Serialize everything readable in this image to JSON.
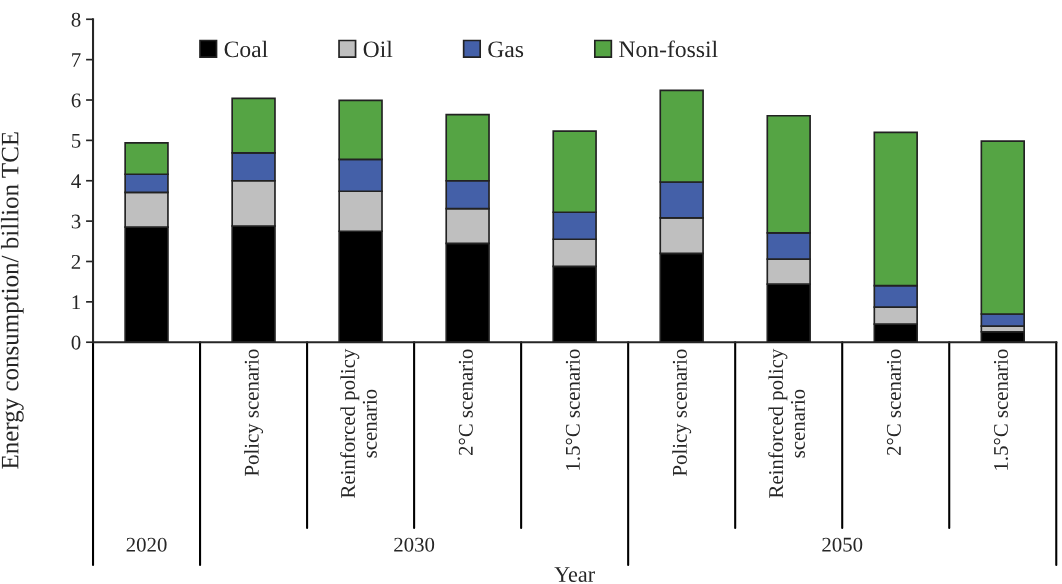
{
  "chart_data": {
    "type": "bar",
    "stacked": true,
    "ylabel": "Energy consumption/ billion TCE",
    "xlabel": "Year",
    "categories": [
      null,
      "Policy scenario",
      "Reinforced policy\nscenario",
      "2°C scenario",
      "1.5°C scenario",
      "Policy scenario",
      "Reinforced policy\nscenario",
      "2°C scenario",
      "1.5°C scenario"
    ],
    "annotations": [
      "2020",
      "2030",
      "2050"
    ],
    "series": [
      {
        "name": "Coal",
        "color": "#000000",
        "values": [
          2.85,
          2.88,
          2.75,
          2.45,
          1.88,
          2.2,
          1.44,
          0.45,
          0.26
        ]
      },
      {
        "name": "Oil",
        "color": "#bfbfbf",
        "values": [
          0.86,
          1.12,
          0.99,
          0.86,
          0.67,
          0.88,
          0.62,
          0.42,
          0.14
        ]
      },
      {
        "name": "Gas",
        "color": "#4460a8",
        "values": [
          0.45,
          0.69,
          0.79,
          0.69,
          0.67,
          0.89,
          0.65,
          0.53,
          0.3
        ]
      },
      {
        "name": "Non-fossil",
        "color": "#55a444",
        "values": [
          0.78,
          1.35,
          1.46,
          1.64,
          2.01,
          2.27,
          2.9,
          3.8,
          4.28
        ]
      }
    ],
    "ylim": [
      0,
      8
    ],
    "yticks": [
      0,
      1,
      2,
      3,
      4,
      5,
      6,
      7,
      8
    ],
    "grid": false,
    "legend": "top"
  }
}
